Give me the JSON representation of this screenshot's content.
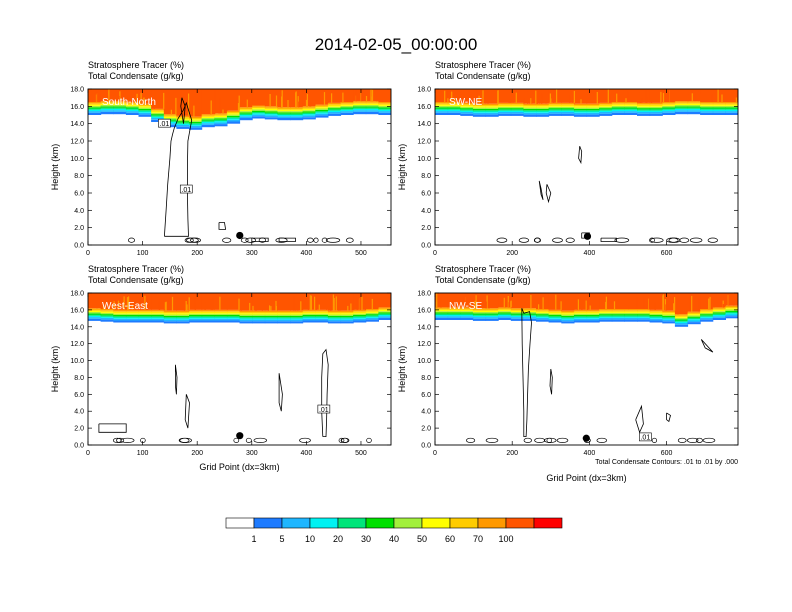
{
  "figure": {
    "title": "2014-02-05_00:00:00",
    "footnote": "Total Condensate Contours: .01 to .01 by .000"
  },
  "chart_data": [
    {
      "type": "heatmap",
      "panel": "South-North",
      "subtitle_1": "Stratosphere Tracer   (%)",
      "subtitle_2": "Total Condensate   (g/kg)",
      "ylabel": "Height (km)",
      "xlabel": "",
      "xlim": [
        0,
        555
      ],
      "ylim": [
        0,
        18
      ],
      "xticks": [
        "0",
        "100",
        "200",
        "300",
        "400",
        "500"
      ],
      "xtick_values": [
        0,
        100,
        200,
        300,
        400,
        500
      ],
      "yticks": [
        "0.0",
        "2.0",
        "4.0",
        "6.0",
        "8.0",
        "10.0",
        "12.0",
        "14.0",
        "16.0",
        "18.0"
      ],
      "tracer_base_km": [
        15.0,
        15.1,
        15.1,
        15.0,
        14.8,
        14.2,
        13.6,
        13.4,
        13.3,
        13.6,
        13.7,
        14.0,
        14.4,
        14.6,
        14.5,
        14.4,
        14.4,
        14.5,
        14.7,
        14.9,
        15.0,
        15.1,
        15.1,
        15.0
      ],
      "contour_label": ".01",
      "contour_label_positions": [
        [
          140,
          14.0
        ],
        [
          180,
          6.4
        ]
      ],
      "marker": {
        "x": 278,
        "y": 1.1
      }
    },
    {
      "type": "heatmap",
      "panel": "SW-NE",
      "subtitle_1": "Stratosphere Tracer   (%)",
      "subtitle_2": "Total Condensate   (g/kg)",
      "ylabel": "Height (km)",
      "xlabel": "",
      "xlim": [
        0,
        785
      ],
      "ylim": [
        0,
        18
      ],
      "xticks": [
        "0",
        "200",
        "400",
        "600"
      ],
      "xtick_values": [
        0,
        200,
        400,
        600
      ],
      "yticks": [
        "0.0",
        "2.0",
        "4.0",
        "6.0",
        "8.0",
        "10.0",
        "12.0",
        "14.0",
        "16.0",
        "18.0"
      ],
      "tracer_base_km": [
        15.0,
        15.0,
        14.9,
        14.8,
        14.8,
        14.9,
        14.9,
        14.8,
        14.8,
        14.9,
        14.9,
        14.8,
        14.8,
        14.9,
        15.0,
        15.0,
        14.9,
        14.9,
        15.0,
        15.1,
        15.1,
        15.0,
        15.0,
        15.0
      ],
      "contour_label": "",
      "contour_label_positions": [],
      "marker": {
        "x": 395,
        "y": 1.0
      }
    },
    {
      "type": "heatmap",
      "panel": "West-East",
      "subtitle_1": "Stratosphere Tracer   (%)",
      "subtitle_2": "Total Condensate   (g/kg)",
      "ylabel": "Height (km)",
      "xlabel": "Grid Point (dx=3km)",
      "xlim": [
        0,
        555
      ],
      "ylim": [
        0,
        18
      ],
      "xticks": [
        "0",
        "100",
        "200",
        "300",
        "400",
        "500"
      ],
      "xtick_values": [
        0,
        100,
        200,
        300,
        400,
        500
      ],
      "yticks": [
        "0.0",
        "2.0",
        "4.0",
        "6.0",
        "8.0",
        "10.0",
        "12.0",
        "14.0",
        "16.0",
        "18.0"
      ],
      "tracer_base_km": [
        14.7,
        14.6,
        14.5,
        14.5,
        14.5,
        14.5,
        14.4,
        14.4,
        14.5,
        14.5,
        14.5,
        14.5,
        14.4,
        14.4,
        14.4,
        14.4,
        14.4,
        14.5,
        14.5,
        14.4,
        14.4,
        14.5,
        14.6,
        14.8
      ],
      "contour_label": ".01",
      "contour_label_positions": [
        [
          432,
          4.2
        ]
      ],
      "marker": {
        "x": 278,
        "y": 1.1
      }
    },
    {
      "type": "heatmap",
      "panel": "NW-SE",
      "subtitle_1": "Stratosphere Tracer   (%)",
      "subtitle_2": "Total Condensate   (g/kg)",
      "ylabel": "Height (km)",
      "xlabel": "Grid Point (dx=3km)",
      "xlim": [
        0,
        785
      ],
      "ylim": [
        0,
        18
      ],
      "xticks": [
        "0",
        "200",
        "400",
        "600"
      ],
      "xtick_values": [
        0,
        200,
        400,
        600
      ],
      "yticks": [
        "0.0",
        "2.0",
        "4.0",
        "6.0",
        "8.0",
        "10.0",
        "12.0",
        "14.0",
        "16.0",
        "18.0"
      ],
      "tracer_base_km": [
        14.8,
        14.8,
        14.8,
        14.7,
        14.7,
        14.8,
        14.7,
        14.7,
        14.6,
        14.5,
        14.4,
        14.5,
        14.5,
        14.6,
        14.6,
        14.6,
        14.6,
        14.5,
        14.4,
        14.0,
        14.3,
        14.6,
        14.8,
        15.0
      ],
      "contour_label": ".01",
      "contour_label_positions": [
        [
          545,
          0.9
        ]
      ],
      "marker": {
        "x": 392,
        "y": 0.8
      }
    }
  ],
  "colorbar": {
    "labels": [
      "1",
      "5",
      "10",
      "20",
      "30",
      "40",
      "50",
      "60",
      "70",
      "100"
    ],
    "colors": [
      "#ffffff",
      "#1e7bff",
      "#1fb6ff",
      "#00f2f2",
      "#00e57a",
      "#00e000",
      "#a2f03c",
      "#ffff00",
      "#ffcc00",
      "#ff9900",
      "#ff5500",
      "#ff0000"
    ]
  }
}
